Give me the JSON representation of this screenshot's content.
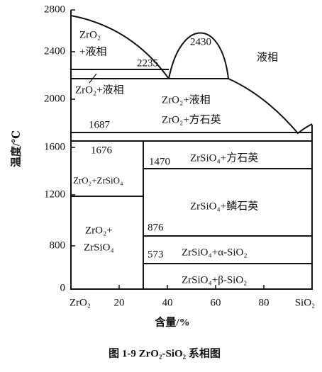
{
  "axes": {
    "y_label": "温度/℃",
    "y_ticks": [
      "2800",
      "2400",
      "2000",
      "1600",
      "1200",
      "800",
      "0"
    ],
    "x_label": "含量/%",
    "x_ticks": [
      "ZrO₂",
      "20",
      "40",
      "60",
      "80",
      "SiO₂"
    ]
  },
  "temperatures": [
    "2430",
    "2235",
    "1687",
    "1676",
    "1470",
    "876",
    "573"
  ],
  "regions": [
    [
      "ZrO₂",
      "+液相"
    ],
    [
      "液相"
    ],
    [
      "ZrO₂+液相"
    ],
    [
      "ZrO₂+液相"
    ],
    [
      "ZrO₂+方石英"
    ],
    [
      "ZrO₂+ZrSiO₄"
    ],
    [
      "ZrSiO₄+方石英"
    ],
    [
      "ZrSiO₄+鳞石英"
    ],
    [
      "ZrO₂+",
      "ZrSiO₄"
    ],
    [
      "ZrSiO₄+α-SiO₂"
    ],
    [
      "ZrSiO₄+β-SiO₂"
    ]
  ],
  "caption": "图 1-9  ZrO₂-SiO₂ 系相图"
}
